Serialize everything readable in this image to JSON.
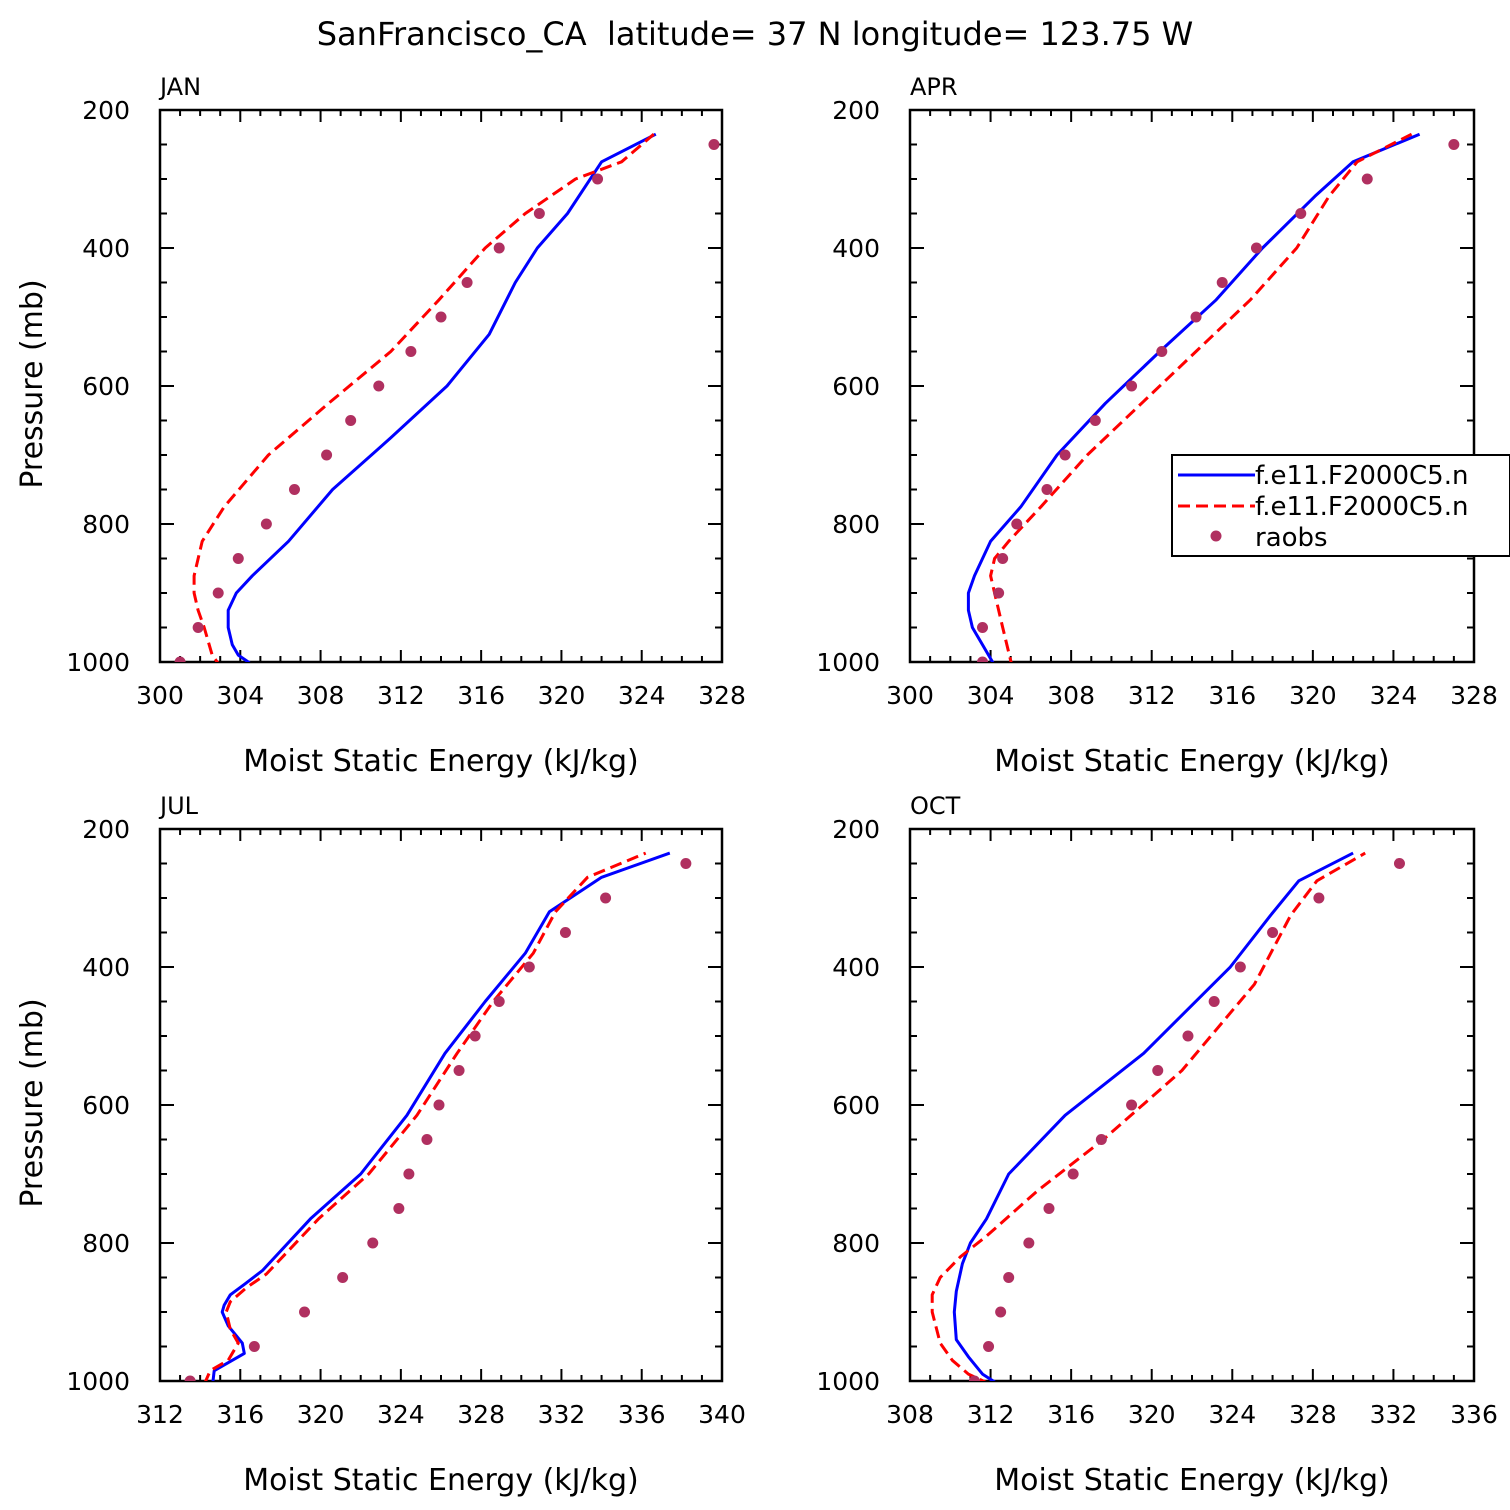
{
  "figure_title": "SanFrancisco_CA  latitude= 37 N longitude= 123.75 W",
  "legend": {
    "entries": [
      {
        "label": "f.e11.F2000C5.n",
        "style": "solid",
        "color": "#0000ff"
      },
      {
        "label": "f.e11.F2000C5.n",
        "style": "dashed",
        "color": "#ff0000"
      },
      {
        "label": "raobs",
        "style": "dot",
        "color": "#b03060"
      }
    ]
  },
  "colors": {
    "solid": "#0000ff",
    "dashed": "#ff0000",
    "dot": "#b03060"
  },
  "chart_data": [
    {
      "type": "line",
      "title": "JAN",
      "xlabel": "Moist Static Energy (kJ/kg)",
      "ylabel": "Pressure (mb)",
      "xlim": [
        300,
        328
      ],
      "ylim": [
        1000,
        200
      ],
      "xticks": [
        "300",
        "304",
        "308",
        "312",
        "316",
        "320",
        "324",
        "328"
      ],
      "yticks": [
        "200",
        "400",
        "600",
        "800",
        "1000"
      ],
      "series": [
        {
          "kind": "solid",
          "x": [
            304.8,
            304.4,
            303.9,
            303.6,
            303.4,
            303.4,
            303.8,
            304.6,
            306.4,
            308.6,
            311.5,
            314.3,
            316.4,
            317.7,
            318.8,
            320.3,
            322.0,
            324.7
          ],
          "y": [
            1010,
            1000,
            990,
            975,
            950,
            925,
            900,
            875,
            825,
            750,
            675,
            600,
            525,
            450,
            400,
            350,
            275,
            235
          ]
        },
        {
          "kind": "dashed",
          "x": [
            303.1,
            302.6,
            302.2,
            301.9,
            301.7,
            301.7,
            302.1,
            303.2,
            305.4,
            308.4,
            311.5,
            313.9,
            316.2,
            318.2,
            320.7,
            323.0,
            324.6
          ],
          "y": [
            1010,
            990,
            950,
            925,
            900,
            875,
            825,
            775,
            700,
            625,
            550,
            475,
            400,
            350,
            300,
            275,
            235
          ]
        },
        {
          "kind": "dot",
          "x": [
            301.0,
            301.9,
            302.9,
            303.9,
            305.3,
            306.7,
            308.3,
            309.5,
            310.9,
            312.5,
            314.0,
            315.3,
            316.9,
            318.9,
            321.8,
            327.6
          ],
          "y": [
            1000,
            950,
            900,
            850,
            800,
            750,
            700,
            650,
            600,
            550,
            500,
            450,
            400,
            350,
            300,
            250
          ]
        }
      ]
    },
    {
      "type": "line",
      "title": "APR",
      "xlabel": "Moist Static Energy (kJ/kg)",
      "ylabel": "",
      "xlim": [
        300,
        328
      ],
      "ylim": [
        1000,
        200
      ],
      "xticks": [
        "300",
        "304",
        "308",
        "312",
        "316",
        "320",
        "324",
        "328"
      ],
      "yticks": [
        "200",
        "400",
        "600",
        "800",
        "1000"
      ],
      "series": [
        {
          "kind": "solid",
          "x": [
            304.3,
            303.6,
            303.1,
            302.9,
            302.9,
            303.2,
            304.0,
            305.5,
            307.3,
            309.7,
            312.4,
            315.2,
            317.5,
            320.1,
            322.0,
            325.3
          ],
          "y": [
            1010,
            975,
            950,
            925,
            900,
            875,
            825,
            775,
            700,
            625,
            550,
            475,
            400,
            325,
            275,
            235
          ]
        },
        {
          "kind": "dashed",
          "x": [
            305.1,
            304.6,
            304.2,
            304.0,
            304.2,
            304.9,
            306.5,
            308.8,
            311.5,
            314.2,
            316.9,
            319.2,
            320.8,
            322.2,
            324.9
          ],
          "y": [
            1010,
            950,
            900,
            875,
            850,
            825,
            775,
            700,
            625,
            550,
            475,
            400,
            325,
            275,
            235
          ]
        },
        {
          "kind": "dot",
          "x": [
            303.6,
            303.6,
            304.4,
            304.6,
            305.3,
            306.8,
            307.7,
            309.2,
            311.0,
            312.5,
            314.2,
            315.5,
            317.2,
            319.4,
            322.7,
            327.0
          ],
          "y": [
            1000,
            950,
            900,
            850,
            800,
            750,
            700,
            650,
            600,
            550,
            500,
            450,
            400,
            350,
            300,
            250
          ]
        }
      ]
    },
    {
      "type": "line",
      "title": "JUL",
      "xlabel": "Moist Static Energy (kJ/kg)",
      "ylabel": "Pressure (mb)",
      "xlim": [
        312,
        340
      ],
      "ylim": [
        1000,
        200
      ],
      "xticks": [
        "312",
        "316",
        "320",
        "324",
        "328",
        "332",
        "336",
        "340"
      ],
      "yticks": [
        "200",
        "400",
        "600",
        "800",
        "1000"
      ],
      "series": [
        {
          "kind": "solid",
          "x": [
            314.6,
            314.7,
            316.2,
            316.1,
            315.4,
            315.1,
            315.2,
            315.5,
            316.2,
            317.1,
            319.5,
            322.0,
            324.3,
            326.2,
            328.2,
            330.2,
            331.4,
            334.0,
            337.4
          ],
          "y": [
            1010,
            985,
            960,
            945,
            920,
            900,
            890,
            875,
            860,
            840,
            765,
            700,
            615,
            525,
            450,
            380,
            320,
            270,
            235
          ]
        },
        {
          "kind": "dashed",
          "x": [
            314.2,
            314.5,
            315.4,
            315.9,
            315.5,
            315.3,
            315.5,
            316.3,
            317.3,
            319.9,
            322.4,
            324.8,
            326.8,
            328.6,
            330.6,
            331.7,
            333.3,
            336.2
          ],
          "y": [
            1005,
            985,
            970,
            945,
            925,
            900,
            885,
            865,
            845,
            765,
            700,
            615,
            525,
            450,
            380,
            320,
            270,
            235
          ]
        },
        {
          "kind": "dot",
          "x": [
            313.5,
            316.7,
            319.2,
            321.1,
            322.6,
            323.9,
            324.4,
            325.3,
            325.9,
            326.9,
            327.7,
            328.9,
            330.4,
            332.2,
            334.2,
            338.2
          ],
          "y": [
            1000,
            950,
            900,
            850,
            800,
            750,
            700,
            650,
            600,
            550,
            500,
            450,
            400,
            350,
            300,
            250
          ]
        }
      ]
    },
    {
      "type": "line",
      "title": "OCT",
      "xlabel": "Moist Static Energy (kJ/kg)",
      "ylabel": "",
      "xlim": [
        308,
        336
      ],
      "ylim": [
        1000,
        200
      ],
      "xticks": [
        "308",
        "312",
        "316",
        "320",
        "324",
        "328",
        "332",
        "336"
      ],
      "yticks": [
        "200",
        "400",
        "600",
        "800",
        "1000"
      ],
      "series": [
        {
          "kind": "solid",
          "x": [
            312.4,
            311.6,
            310.9,
            310.3,
            310.2,
            310.3,
            310.6,
            311.0,
            311.8,
            312.9,
            315.7,
            319.6,
            323.9,
            325.9,
            327.3,
            330.0
          ],
          "y": [
            1005,
            990,
            965,
            940,
            900,
            870,
            830,
            800,
            765,
            700,
            615,
            525,
            400,
            325,
            275,
            235
          ]
        },
        {
          "kind": "dashed",
          "x": [
            312.0,
            310.9,
            310.1,
            309.5,
            309.1,
            309.1,
            309.5,
            310.5,
            311.8,
            314.3,
            317.6,
            321.5,
            325.1,
            326.9,
            328.2,
            330.6
          ],
          "y": [
            1005,
            990,
            970,
            945,
            900,
            875,
            850,
            820,
            790,
            725,
            650,
            550,
            425,
            325,
            275,
            235
          ]
        },
        {
          "kind": "dot",
          "x": [
            311.2,
            311.9,
            312.5,
            312.9,
            313.9,
            314.9,
            316.1,
            317.5,
            319.0,
            320.3,
            321.8,
            323.1,
            324.4,
            326.0,
            328.3,
            332.3
          ],
          "y": [
            1000,
            950,
            900,
            850,
            800,
            750,
            700,
            650,
            600,
            550,
            500,
            450,
            400,
            350,
            300,
            250
          ]
        }
      ]
    }
  ]
}
